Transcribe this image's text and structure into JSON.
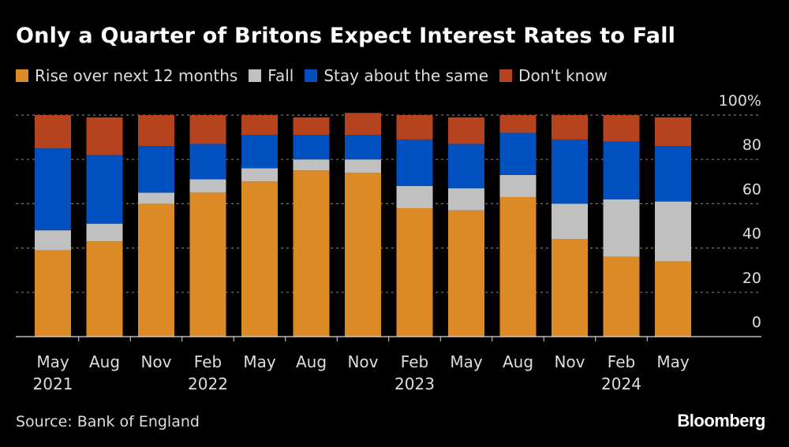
{
  "chart_data": {
    "type": "bar",
    "stacked": true,
    "title": "Only a Quarter of Britons Expect Interest Rates to Fall",
    "categories": [
      "May 2021",
      "Aug",
      "Nov",
      "Feb 2022",
      "May",
      "Aug",
      "Nov",
      "Feb 2023",
      "May",
      "Aug",
      "Nov",
      "Feb 2024",
      "May"
    ],
    "x_tick_labels": [
      [
        "May",
        "2021"
      ],
      [
        "Aug",
        ""
      ],
      [
        "Nov",
        ""
      ],
      [
        "Feb",
        "2022"
      ],
      [
        "May",
        ""
      ],
      [
        "Aug",
        ""
      ],
      [
        "Nov",
        ""
      ],
      [
        "Feb",
        "2023"
      ],
      [
        "May",
        ""
      ],
      [
        "Aug",
        ""
      ],
      [
        "Nov",
        ""
      ],
      [
        "Feb",
        "2024"
      ],
      [
        "May",
        ""
      ]
    ],
    "series": [
      {
        "name": "Rise over next 12 months",
        "color": "#DC8A26",
        "values": [
          39,
          43,
          60,
          65,
          70,
          75,
          74,
          58,
          57,
          63,
          44,
          36,
          34
        ]
      },
      {
        "name": "Fall",
        "color": "#C0C0C0",
        "values": [
          9,
          8,
          5,
          6,
          6,
          5,
          6,
          10,
          10,
          10,
          16,
          26,
          27
        ]
      },
      {
        "name": "Stay about the same",
        "color": "#0050C0",
        "values": [
          37,
          31,
          21,
          16,
          15,
          11,
          11,
          21,
          20,
          19,
          29,
          26,
          25
        ]
      },
      {
        "name": "Don't know",
        "color": "#B5441E",
        "values": [
          15,
          17,
          14,
          13,
          9,
          8,
          10,
          11,
          12,
          8,
          11,
          12,
          13
        ]
      }
    ],
    "ylim": [
      0,
      100
    ],
    "y_ticks": [
      0,
      20,
      40,
      60,
      80,
      100
    ],
    "y_tick_labels": [
      "0",
      "20",
      "40",
      "60",
      "80",
      "100%"
    ],
    "y_axis_side": "right",
    "grid": true,
    "legend_placement": "top-left"
  },
  "source": "Source: Bank of England",
  "logo": "Bloomberg"
}
